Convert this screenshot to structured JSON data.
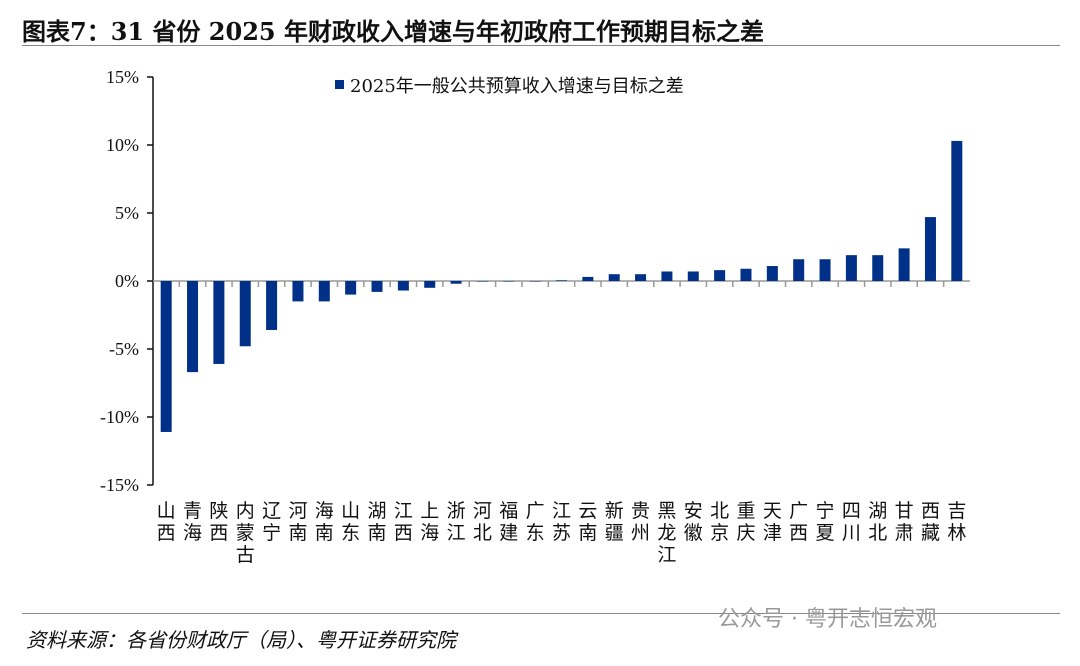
{
  "title": "图表7：31 省份 2025 年财政收入增速与年初政府工作预期目标之差",
  "source": "资料来源：各省份财政厅（局）、粤开证券研究院",
  "watermark": "公众号 · 粤开志恒宏观",
  "chart_data": {
    "type": "bar",
    "title": "",
    "xlabel": "",
    "ylabel": "",
    "ylim": [
      -15,
      15
    ],
    "yticks": [
      "15%",
      "10%",
      "5%",
      "0%",
      "-5%",
      "-10%",
      "-15%"
    ],
    "ytick_values": [
      15,
      10,
      5,
      0,
      -5,
      -10,
      -15
    ],
    "legend_position": "top",
    "grid": false,
    "bar_color": "#003087",
    "categories": [
      "山西",
      "青海",
      "陕西",
      "内蒙古",
      "辽宁",
      "河南",
      "海南",
      "山东",
      "湖南",
      "江西",
      "上海",
      "浙江",
      "河北",
      "福建",
      "广东",
      "江苏",
      "云南",
      "新疆",
      "贵州",
      "黑龙江",
      "安徽",
      "北京",
      "重庆",
      "天津",
      "广西",
      "宁夏",
      "四川",
      "湖北",
      "甘肃",
      "西藏",
      "吉林"
    ],
    "series": [
      {
        "name": "2025年一般公共预算收入增速与目标之差",
        "values": [
          -11.1,
          -6.7,
          -6.1,
          -4.8,
          -3.6,
          -1.5,
          -1.5,
          -1.0,
          -0.8,
          -0.7,
          -0.5,
          -0.2,
          0,
          0,
          0,
          0.05,
          0.3,
          0.5,
          0.5,
          0.7,
          0.7,
          0.8,
          0.9,
          1.1,
          1.6,
          1.6,
          1.9,
          1.9,
          2.4,
          4.7,
          10.3
        ]
      }
    ]
  }
}
